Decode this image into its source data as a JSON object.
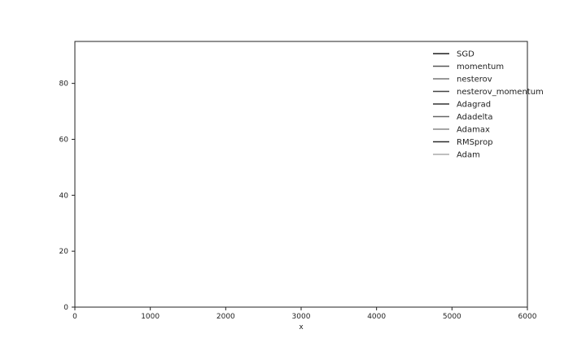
{
  "chart_data": {
    "type": "line",
    "title": "",
    "xlabel": "x",
    "ylabel": "",
    "xlim": [
      0,
      6000
    ],
    "ylim": [
      0,
      95
    ],
    "x_ticks": [
      "0",
      "1000",
      "2000",
      "3000",
      "4000",
      "5000",
      "6000"
    ],
    "y_ticks": [
      "0",
      "20",
      "40",
      "60",
      "80"
    ],
    "grid": false,
    "legend_position": "top-right",
    "series": [
      {
        "name": "SGD",
        "color": "#1f1f1f",
        "x": [],
        "y": []
      },
      {
        "name": "momentum",
        "color": "#555555",
        "x": [],
        "y": []
      },
      {
        "name": "nesterov",
        "color": "#777777",
        "x": [],
        "y": []
      },
      {
        "name": "nesterov_momentum",
        "color": "#444444",
        "x": [],
        "y": []
      },
      {
        "name": "Adagrad",
        "color": "#333333",
        "x": [],
        "y": []
      },
      {
        "name": "Adadelta",
        "color": "#666666",
        "x": [],
        "y": []
      },
      {
        "name": "Adamax",
        "color": "#888888",
        "x": [],
        "y": []
      },
      {
        "name": "RMSprop",
        "color": "#2a2a2a",
        "x": [],
        "y": []
      },
      {
        "name": "Adam",
        "color": "#aaaaaa",
        "x": [],
        "y": []
      }
    ]
  }
}
